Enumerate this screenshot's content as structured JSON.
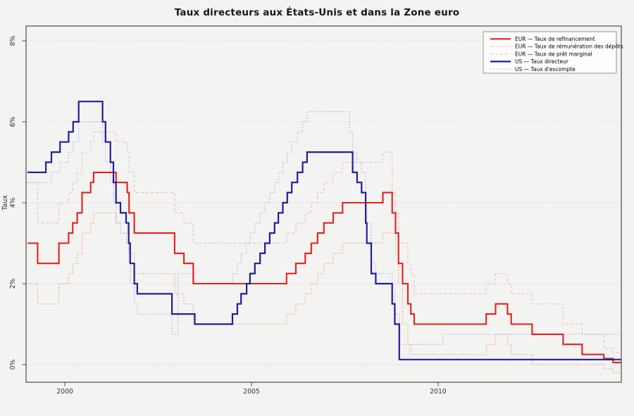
{
  "figure": {
    "background_color": "#f3f3f2",
    "box_color": "#4d4d4d",
    "grid_color": "#dcd3d3",
    "tick_color": "#4d4d4d",
    "label_color": "#333333",
    "legend_bg": "#fdfdfd",
    "legend_border": "#8a8a8a"
  },
  "chart_data": {
    "type": "line",
    "step": true,
    "title": "Taux directeurs aux États-Unis et dans la Zone euro",
    "xlabel": "",
    "ylabel": "Taux",
    "xlim": [
      1998.96,
      2014.91
    ],
    "ylim": [
      -0.435,
      8.365
    ],
    "x_end": 2014.9,
    "grid": "horizontal dotted lines at each y tick",
    "x_ticks": [
      {
        "value": 2000,
        "label": "2000"
      },
      {
        "value": 2005,
        "label": "2005"
      },
      {
        "value": 2010,
        "label": "2010"
      }
    ],
    "y_ticks": [
      {
        "value": 0,
        "label": "0%"
      },
      {
        "value": 2,
        "label": "2%"
      },
      {
        "value": 4,
        "label": "4%"
      },
      {
        "value": 6,
        "label": "6%"
      },
      {
        "value": 8,
        "label": "8%"
      }
    ],
    "legend": {
      "position": "top-right"
    },
    "series": [
      {
        "id": "eur-refinancement",
        "name": "EUR — Taux de refinancement",
        "color": "#e32219",
        "style": "solid",
        "width": 2.1,
        "points": [
          [
            1999.0,
            3.0
          ],
          [
            1999.27,
            2.5
          ],
          [
            1999.84,
            3.0
          ],
          [
            2000.1,
            3.25
          ],
          [
            2000.21,
            3.5
          ],
          [
            2000.33,
            3.75
          ],
          [
            2000.46,
            4.25
          ],
          [
            2000.69,
            4.5
          ],
          [
            2000.77,
            4.75
          ],
          [
            2001.37,
            4.5
          ],
          [
            2001.67,
            4.25
          ],
          [
            2001.72,
            3.75
          ],
          [
            2001.86,
            3.25
          ],
          [
            2002.94,
            2.75
          ],
          [
            2003.19,
            2.5
          ],
          [
            2003.44,
            2.0
          ],
          [
            2005.94,
            2.25
          ],
          [
            2006.19,
            2.5
          ],
          [
            2006.44,
            2.75
          ],
          [
            2006.6,
            3.0
          ],
          [
            2006.77,
            3.25
          ],
          [
            2006.94,
            3.5
          ],
          [
            2007.19,
            3.75
          ],
          [
            2007.44,
            4.0
          ],
          [
            2008.52,
            4.25
          ],
          [
            2008.77,
            3.75
          ],
          [
            2008.86,
            3.25
          ],
          [
            2008.94,
            2.5
          ],
          [
            2009.05,
            2.0
          ],
          [
            2009.19,
            1.5
          ],
          [
            2009.27,
            1.25
          ],
          [
            2009.36,
            1.0
          ],
          [
            2011.29,
            1.25
          ],
          [
            2011.54,
            1.5
          ],
          [
            2011.86,
            1.25
          ],
          [
            2011.96,
            1.0
          ],
          [
            2012.52,
            0.75
          ],
          [
            2013.35,
            0.5
          ],
          [
            2013.86,
            0.25
          ],
          [
            2014.44,
            0.15
          ],
          [
            2014.69,
            0.05
          ]
        ]
      },
      {
        "id": "eur-depots",
        "name": "EUR — Taux de rémunération des dépôts",
        "color": "#f3a285",
        "style": "dotted",
        "width": 1.25,
        "points": [
          [
            1999.0,
            2.0
          ],
          [
            1999.27,
            1.5
          ],
          [
            1999.84,
            2.0
          ],
          [
            2000.1,
            2.25
          ],
          [
            2000.21,
            2.5
          ],
          [
            2000.33,
            2.75
          ],
          [
            2000.46,
            3.25
          ],
          [
            2000.69,
            3.5
          ],
          [
            2000.77,
            3.75
          ],
          [
            2001.37,
            3.5
          ],
          [
            2001.67,
            3.25
          ],
          [
            2001.72,
            2.75
          ],
          [
            2001.86,
            2.25
          ],
          [
            2002.94,
            1.75
          ],
          [
            2003.19,
            1.5
          ],
          [
            2003.44,
            1.0
          ],
          [
            2005.94,
            1.25
          ],
          [
            2006.19,
            1.5
          ],
          [
            2006.44,
            1.75
          ],
          [
            2006.6,
            2.0
          ],
          [
            2006.77,
            2.25
          ],
          [
            2006.94,
            2.5
          ],
          [
            2007.19,
            2.75
          ],
          [
            2007.44,
            3.0
          ],
          [
            2008.52,
            3.25
          ],
          [
            2008.86,
            2.75
          ],
          [
            2008.94,
            2.0
          ],
          [
            2009.05,
            1.0
          ],
          [
            2009.19,
            0.5
          ],
          [
            2009.27,
            0.25
          ],
          [
            2011.29,
            0.5
          ],
          [
            2011.54,
            0.75
          ],
          [
            2011.86,
            0.5
          ],
          [
            2011.96,
            0.25
          ],
          [
            2012.52,
            0.0
          ],
          [
            2014.44,
            -0.1
          ],
          [
            2014.69,
            -0.2
          ]
        ]
      },
      {
        "id": "eur-pret-marginal",
        "name": "EUR — Taux de  prêt marginal",
        "color": "#f6bfbd",
        "style": "dashed",
        "width": 1.25,
        "points": [
          [
            1999.0,
            4.5
          ],
          [
            1999.27,
            3.5
          ],
          [
            1999.84,
            4.0
          ],
          [
            2000.1,
            4.25
          ],
          [
            2000.21,
            4.5
          ],
          [
            2000.33,
            4.75
          ],
          [
            2000.46,
            5.25
          ],
          [
            2000.69,
            5.5
          ],
          [
            2000.77,
            5.75
          ],
          [
            2001.37,
            5.5
          ],
          [
            2001.67,
            5.25
          ],
          [
            2001.72,
            4.75
          ],
          [
            2001.86,
            4.25
          ],
          [
            2002.94,
            3.75
          ],
          [
            2003.19,
            3.5
          ],
          [
            2003.44,
            3.0
          ],
          [
            2005.94,
            3.25
          ],
          [
            2006.19,
            3.5
          ],
          [
            2006.44,
            3.75
          ],
          [
            2006.6,
            4.0
          ],
          [
            2006.77,
            4.25
          ],
          [
            2006.94,
            4.5
          ],
          [
            2007.19,
            4.75
          ],
          [
            2007.44,
            5.0
          ],
          [
            2008.52,
            5.25
          ],
          [
            2008.77,
            4.25
          ],
          [
            2008.86,
            3.75
          ],
          [
            2008.94,
            3.0
          ],
          [
            2009.19,
            2.5
          ],
          [
            2009.27,
            2.25
          ],
          [
            2009.36,
            1.75
          ],
          [
            2011.29,
            2.0
          ],
          [
            2011.54,
            2.25
          ],
          [
            2011.86,
            2.0
          ],
          [
            2011.96,
            1.75
          ],
          [
            2012.52,
            1.5
          ],
          [
            2013.35,
            1.0
          ],
          [
            2013.86,
            0.75
          ],
          [
            2014.44,
            0.4
          ],
          [
            2014.69,
            0.3
          ]
        ]
      },
      {
        "id": "us-directeur",
        "name": "US — Taux directeur",
        "color": "#1f1f99",
        "style": "solid",
        "width": 2.2,
        "points": [
          [
            1999.0,
            4.75
          ],
          [
            1999.49,
            5.0
          ],
          [
            1999.64,
            5.25
          ],
          [
            1999.87,
            5.5
          ],
          [
            2000.1,
            5.75
          ],
          [
            2000.22,
            6.0
          ],
          [
            2000.37,
            6.5
          ],
          [
            2001.01,
            6.0
          ],
          [
            2001.09,
            5.5
          ],
          [
            2001.22,
            5.0
          ],
          [
            2001.3,
            4.5
          ],
          [
            2001.37,
            4.0
          ],
          [
            2001.49,
            3.75
          ],
          [
            2001.64,
            3.5
          ],
          [
            2001.71,
            3.0
          ],
          [
            2001.75,
            2.5
          ],
          [
            2001.86,
            2.0
          ],
          [
            2001.94,
            1.75
          ],
          [
            2002.87,
            1.25
          ],
          [
            2003.48,
            1.0
          ],
          [
            2004.49,
            1.25
          ],
          [
            2004.62,
            1.5
          ],
          [
            2004.72,
            1.75
          ],
          [
            2004.87,
            2.0
          ],
          [
            2004.96,
            2.25
          ],
          [
            2005.09,
            2.5
          ],
          [
            2005.23,
            2.75
          ],
          [
            2005.36,
            3.0
          ],
          [
            2005.49,
            3.25
          ],
          [
            2005.62,
            3.5
          ],
          [
            2005.72,
            3.75
          ],
          [
            2005.84,
            4.0
          ],
          [
            2005.96,
            4.25
          ],
          [
            2006.08,
            4.5
          ],
          [
            2006.23,
            4.75
          ],
          [
            2006.37,
            5.0
          ],
          [
            2006.49,
            5.25
          ],
          [
            2007.71,
            4.75
          ],
          [
            2007.83,
            4.5
          ],
          [
            2007.95,
            4.25
          ],
          [
            2008.06,
            3.5
          ],
          [
            2008.09,
            3.0
          ],
          [
            2008.21,
            2.25
          ],
          [
            2008.33,
            2.0
          ],
          [
            2008.77,
            1.5
          ],
          [
            2008.84,
            1.0
          ],
          [
            2008.96,
            0.125
          ]
        ]
      },
      {
        "id": "us-escompte",
        "name": "US — Taux d'escompte",
        "color": "#b2b3e7",
        "style": "dotted",
        "width": 1.25,
        "points": [
          [
            1999.0,
            4.5
          ],
          [
            1999.64,
            4.75
          ],
          [
            1999.87,
            5.0
          ],
          [
            2000.1,
            5.25
          ],
          [
            2000.22,
            5.5
          ],
          [
            2000.37,
            6.0
          ],
          [
            2001.01,
            5.5
          ],
          [
            2001.09,
            5.0
          ],
          [
            2001.22,
            4.5
          ],
          [
            2001.3,
            4.0
          ],
          [
            2001.37,
            3.5
          ],
          [
            2001.49,
            3.25
          ],
          [
            2001.64,
            3.0
          ],
          [
            2001.71,
            2.5
          ],
          [
            2001.75,
            2.0
          ],
          [
            2001.86,
            1.5
          ],
          [
            2001.94,
            1.25
          ],
          [
            2002.87,
            0.75
          ],
          [
            2003.03,
            2.25
          ],
          [
            2003.48,
            2.0
          ],
          [
            2004.49,
            2.25
          ],
          [
            2004.62,
            2.5
          ],
          [
            2004.72,
            2.75
          ],
          [
            2004.87,
            3.0
          ],
          [
            2004.96,
            3.25
          ],
          [
            2005.09,
            3.5
          ],
          [
            2005.23,
            3.75
          ],
          [
            2005.36,
            4.0
          ],
          [
            2005.49,
            4.25
          ],
          [
            2005.62,
            4.5
          ],
          [
            2005.72,
            4.75
          ],
          [
            2005.84,
            5.0
          ],
          [
            2005.96,
            5.25
          ],
          [
            2006.08,
            5.5
          ],
          [
            2006.23,
            5.75
          ],
          [
            2006.37,
            6.0
          ],
          [
            2006.49,
            6.25
          ],
          [
            2007.63,
            5.75
          ],
          [
            2007.71,
            5.25
          ],
          [
            2007.83,
            5.0
          ],
          [
            2007.95,
            4.75
          ],
          [
            2008.06,
            4.0
          ],
          [
            2008.09,
            3.5
          ],
          [
            2008.21,
            2.5
          ],
          [
            2008.33,
            2.25
          ],
          [
            2008.77,
            1.75
          ],
          [
            2008.84,
            1.25
          ],
          [
            2008.96,
            0.5
          ],
          [
            2010.13,
            0.75
          ]
        ]
      }
    ]
  }
}
